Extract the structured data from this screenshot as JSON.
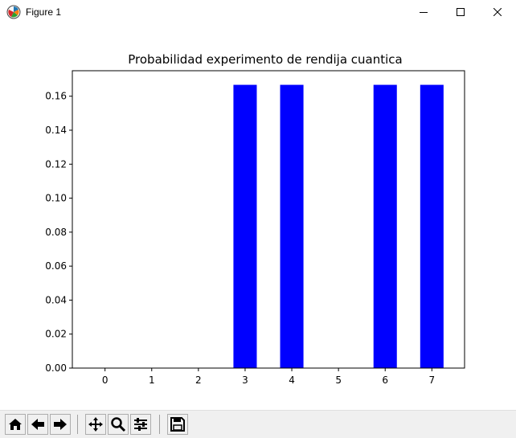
{
  "window": {
    "title": "Figure 1",
    "minimize_label": "Minimize",
    "maximize_label": "Maximize",
    "close_label": "Close"
  },
  "toolbar": {
    "buttons": [
      {
        "name": "home-button",
        "icon": "home-icon",
        "label": "Home"
      },
      {
        "name": "back-button",
        "icon": "arrow-left-icon",
        "label": "Back"
      },
      {
        "name": "forward-button",
        "icon": "arrow-right-icon",
        "label": "Forward"
      },
      {
        "name": "pan-button",
        "icon": "move-icon",
        "label": "Pan"
      },
      {
        "name": "zoom-button",
        "icon": "magnifier-icon",
        "label": "Zoom"
      },
      {
        "name": "subplots-button",
        "icon": "sliders-icon",
        "label": "Subplots"
      },
      {
        "name": "save-button",
        "icon": "floppy-icon",
        "label": "Save"
      }
    ]
  },
  "chart_data": {
    "type": "bar",
    "title": "Probabilidad experimento de rendija cuantica",
    "xlabel": "",
    "ylabel": "",
    "categories": [
      "0",
      "1",
      "2",
      "3",
      "4",
      "5",
      "6",
      "7"
    ],
    "values": [
      0,
      0,
      0,
      0.1667,
      0.1667,
      0,
      0.1667,
      0.1667
    ],
    "ylim": [
      0,
      0.175
    ],
    "yticks": [
      "0.00",
      "0.02",
      "0.04",
      "0.06",
      "0.08",
      "0.10",
      "0.12",
      "0.14",
      "0.16"
    ],
    "ytick_values": [
      0,
      0.02,
      0.04,
      0.06,
      0.08,
      0.1,
      0.12,
      0.14,
      0.16
    ],
    "bar_color": "#0000ff",
    "grid": false
  }
}
